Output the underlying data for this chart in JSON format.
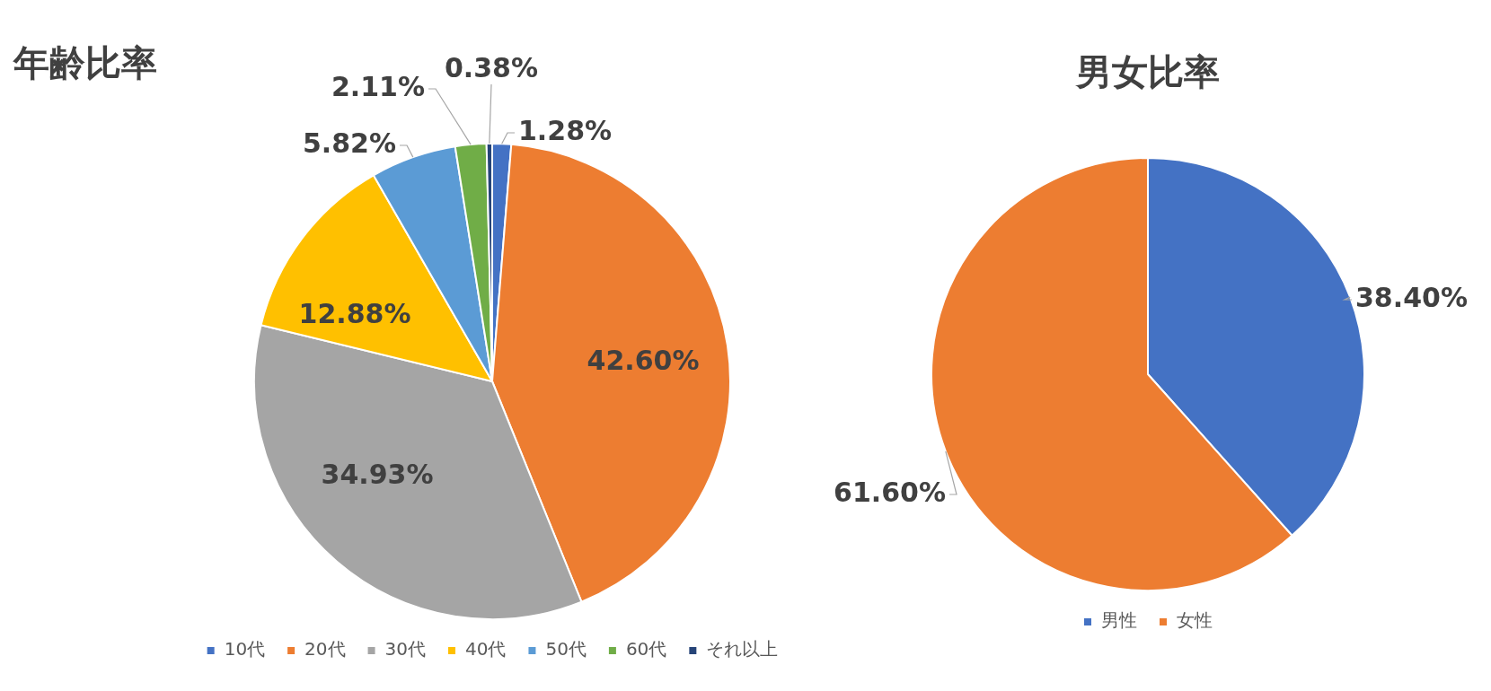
{
  "chart_data": [
    {
      "type": "pie",
      "title": "年齢比率",
      "categories": [
        "10代",
        "20代",
        "30代",
        "40代",
        "50代",
        "60代",
        "それ以上"
      ],
      "values": [
        1.28,
        42.6,
        34.93,
        12.88,
        5.82,
        2.11,
        0.38
      ],
      "colors": [
        "#4472c4",
        "#ed7d31",
        "#a5a5a5",
        "#ffc000",
        "#5b9bd5",
        "#70ad47",
        "#264478"
      ],
      "value_labels": [
        "1.28%",
        "42.60%",
        "34.93%",
        "12.88%",
        "5.82%",
        "2.11%",
        "0.38%"
      ],
      "legend": "bottom"
    },
    {
      "type": "pie",
      "title": "男女比率",
      "categories": [
        "男性",
        "女性"
      ],
      "values": [
        38.4,
        61.6
      ],
      "colors": [
        "#4472c4",
        "#ed7d31"
      ],
      "value_labels": [
        "38.40%",
        "61.60%"
      ],
      "legend": "bottom"
    }
  ]
}
